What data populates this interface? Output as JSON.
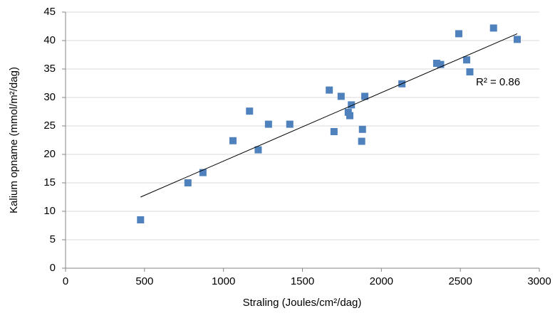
{
  "chart_data": {
    "type": "scatter",
    "x_label": "Straling (Joules/cm²/dag)",
    "y_label": "Kalium opname (mmol/m²/dag)",
    "annotation": "R² = 0.86",
    "series": [
      {
        "color": "#4f81bd",
        "x": [
          475,
          775,
          870,
          1060,
          1165,
          1220,
          1285,
          1420,
          1670,
          1700,
          1745,
          1790,
          1800,
          1810,
          1875,
          1880,
          1895,
          2130,
          2350,
          2375,
          2490,
          2540,
          2560,
          2710,
          2860
        ],
        "values": [
          8.5,
          15,
          16.8,
          22.4,
          27.6,
          20.8,
          25.3,
          25.3,
          31.3,
          24,
          30.2,
          27.4,
          26.8,
          28.7,
          22.3,
          24.4,
          30.2,
          32.4,
          36,
          35.8,
          41.2,
          36.6,
          34.5,
          42.2,
          40.2
        ]
      }
    ],
    "trendline": {
      "color": "#000000",
      "x": [
        475,
        2860
      ],
      "values": [
        12.5,
        41.2
      ]
    },
    "xlim": [
      0,
      3000
    ],
    "xticks": [
      0,
      500,
      1000,
      1500,
      2000,
      2500,
      3000
    ],
    "ylim": [
      0,
      45
    ],
    "yticks": [
      0,
      5,
      10,
      15,
      20,
      25,
      30,
      35,
      40,
      45
    ],
    "grid": true
  }
}
